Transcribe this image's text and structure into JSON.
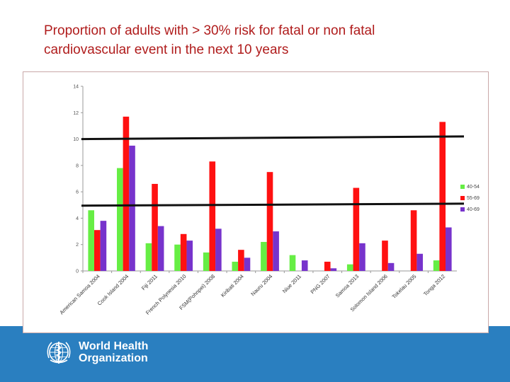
{
  "slide": {
    "title_line1": "Proportion of adults with > 30% risk for fatal or non fatal",
    "title_line2": "cardiovascular event in the next 10 years"
  },
  "footer": {
    "org_line1": "World Health",
    "org_line2": "Organization",
    "band_color": "#2a7fc0"
  },
  "chart_data": {
    "type": "bar",
    "title": "",
    "xlabel": "",
    "ylabel": "",
    "ylim": [
      0,
      14
    ],
    "y_ticks": [
      0,
      2,
      4,
      6,
      8,
      10,
      12,
      14
    ],
    "categories": [
      "American Samoa 2004",
      "Cook Island 2004",
      "Fiji 2011",
      "French Polynesia 2010",
      "FSM(Pohnpei) 2008",
      "Kiribati 2004",
      "Nauru 2004",
      "Niue 2011",
      "PNG 2007",
      "Samoa 2013",
      "Solomon Island 2006",
      "Tokelau 2005",
      "Tonga 2012"
    ],
    "series": [
      {
        "name": "40-54",
        "color": "#66ee44",
        "values": [
          4.6,
          7.8,
          2.1,
          2.0,
          1.4,
          0.7,
          2.2,
          1.2,
          0,
          0.5,
          0,
          0,
          0.8
        ]
      },
      {
        "name": "55-69",
        "color": "#ff1111",
        "values": [
          3.1,
          11.7,
          6.6,
          2.8,
          8.3,
          1.6,
          7.5,
          0,
          0.7,
          6.3,
          2.3,
          4.6,
          11.3
        ]
      },
      {
        "name": "40-69",
        "color": "#7733cc",
        "values": [
          3.8,
          9.5,
          3.4,
          2.3,
          3.2,
          1.0,
          3.0,
          0.8,
          0.2,
          2.1,
          0.6,
          1.3,
          3.3
        ]
      }
    ],
    "legend_position": "right",
    "grid": false,
    "reference_lines": [
      {
        "label": "",
        "y_start": 10.0,
        "y_end": 10.2
      },
      {
        "label": "",
        "y_start": 4.95,
        "y_end": 5.1
      }
    ]
  }
}
